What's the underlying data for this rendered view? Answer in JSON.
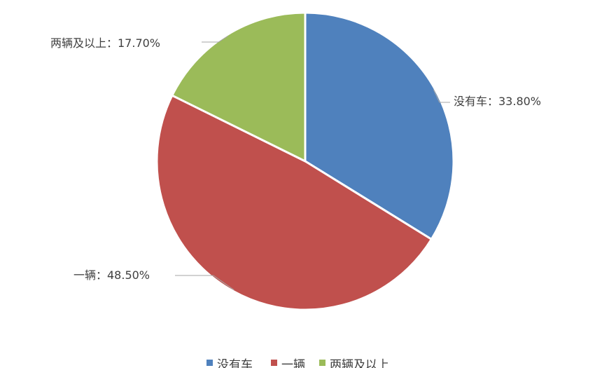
{
  "chart_data": {
    "type": "pie",
    "categories": [
      "没有车",
      "一辆",
      "两辆及以上"
    ],
    "values": [
      33.8,
      48.5,
      17.7
    ],
    "labels": [
      "没有车：33.80%",
      "一辆：48.50%",
      "两辆及以上：17.70%"
    ],
    "colors": [
      "#4f81bd",
      "#c0504d",
      "#9bbb59"
    ],
    "legend": {
      "position": "bottom",
      "items": [
        "没有车",
        "一辆",
        "两辆及以上"
      ]
    }
  }
}
